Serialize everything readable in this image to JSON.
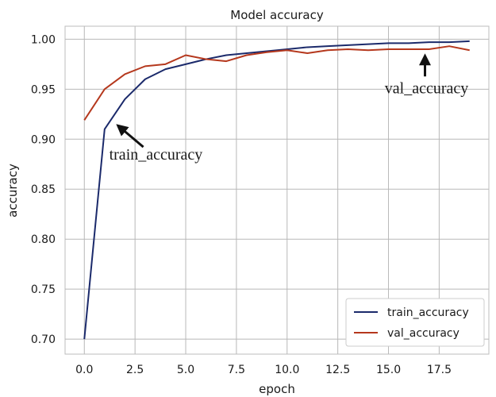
{
  "chart_data": {
    "type": "line",
    "title": "Model accuracy",
    "xlabel": "epoch",
    "ylabel": "accuracy",
    "xlim": [
      -0.95,
      19.95
    ],
    "ylim": [
      0.685,
      1.013
    ],
    "x_ticks": [
      0.0,
      2.5,
      5.0,
      7.5,
      10.0,
      12.5,
      15.0,
      17.5
    ],
    "x_tick_labels": [
      "0.0",
      "2.5",
      "5.0",
      "7.5",
      "10.0",
      "12.5",
      "15.0",
      "17.5"
    ],
    "y_ticks": [
      0.7,
      0.75,
      0.8,
      0.85,
      0.9,
      0.95,
      1.0
    ],
    "y_tick_labels": [
      "0.70",
      "0.75",
      "0.80",
      "0.85",
      "0.90",
      "0.95",
      "1.00"
    ],
    "grid": true,
    "legend_position": "bottom-right",
    "x": [
      0,
      1,
      2,
      3,
      4,
      5,
      6,
      7,
      8,
      9,
      10,
      11,
      12,
      13,
      14,
      15,
      16,
      17,
      18,
      19
    ],
    "series": [
      {
        "name": "train_accuracy",
        "color": "#1b2a6b",
        "values": [
          0.7,
          0.91,
          0.94,
          0.96,
          0.97,
          0.975,
          0.98,
          0.984,
          0.986,
          0.988,
          0.99,
          0.992,
          0.993,
          0.994,
          0.995,
          0.996,
          0.996,
          0.997,
          0.997,
          0.998
        ]
      },
      {
        "name": "val_accuracy",
        "color": "#b5381d",
        "values": [
          0.919,
          0.95,
          0.965,
          0.973,
          0.975,
          0.984,
          0.98,
          0.978,
          0.984,
          0.987,
          0.989,
          0.986,
          0.989,
          0.99,
          0.989,
          0.99,
          0.99,
          0.99,
          0.993,
          0.989
        ]
      }
    ],
    "annotations": [
      {
        "text": "train_accuracy",
        "point_x": 1.5,
        "point_y": 0.916
      },
      {
        "text": "val_accuracy",
        "point_x": 16.8,
        "point_y": 0.985
      }
    ]
  }
}
